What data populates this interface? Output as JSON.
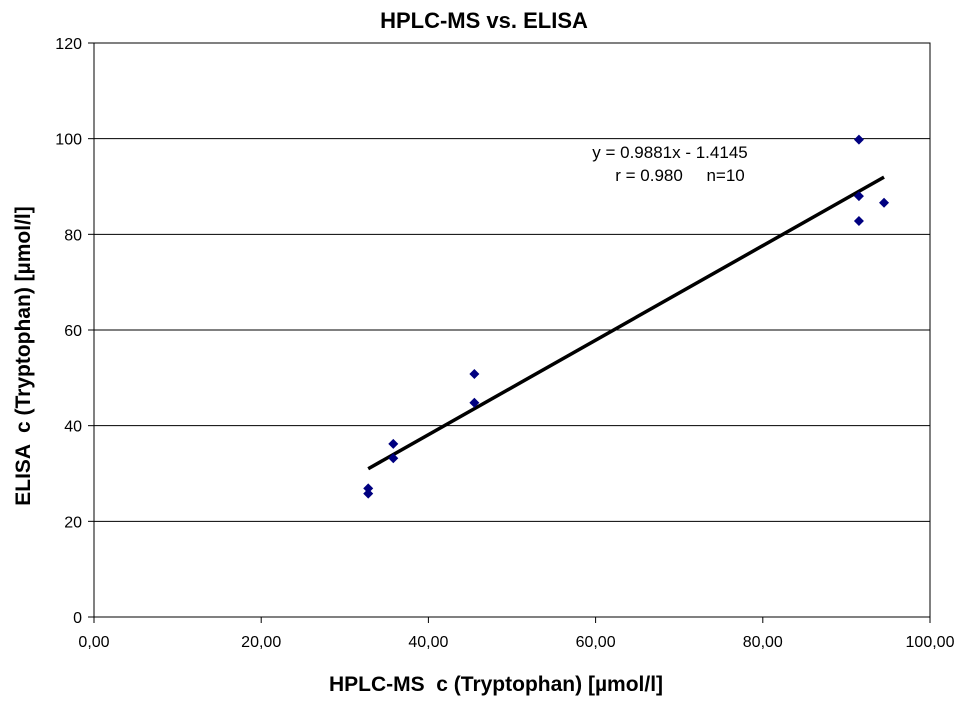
{
  "chart_data": {
    "type": "scatter",
    "title": "HPLC-MS vs. ELISA",
    "xlabel": "HPLC-MS  c (Tryptophan) [µmol/l]",
    "ylabel": "ELISA  c (Tryptophan) [µmol/l]",
    "xlim": [
      0,
      100
    ],
    "ylim": [
      0,
      120
    ],
    "x_ticks": [
      "0,00",
      "20,00",
      "40,00",
      "60,00",
      "80,00",
      "100,00"
    ],
    "x_tick_values": [
      0,
      20,
      40,
      60,
      80,
      100
    ],
    "y_ticks": [
      "0",
      "20",
      "40",
      "60",
      "80",
      "100",
      "120"
    ],
    "y_tick_values": [
      0,
      20,
      40,
      60,
      80,
      100,
      120
    ],
    "grid": "horizontal",
    "marker_color": "#000080",
    "line_color": "#000000",
    "points": [
      {
        "x": 32.8,
        "y": 25.8
      },
      {
        "x": 32.8,
        "y": 26.9
      },
      {
        "x": 35.8,
        "y": 33.2
      },
      {
        "x": 35.8,
        "y": 36.2
      },
      {
        "x": 45.5,
        "y": 44.8
      },
      {
        "x": 45.5,
        "y": 50.8
      },
      {
        "x": 91.5,
        "y": 82.8
      },
      {
        "x": 91.5,
        "y": 88.0
      },
      {
        "x": 91.5,
        "y": 99.8
      },
      {
        "x": 94.5,
        "y": 86.6
      }
    ],
    "trendline": {
      "slope": 0.9881,
      "intercept": -1.4145,
      "x_range": [
        32.8,
        94.5
      ]
    },
    "annotations": {
      "equation": "y = 0.9881x - 1.4145",
      "stats": "r = 0.980     n=10"
    }
  }
}
